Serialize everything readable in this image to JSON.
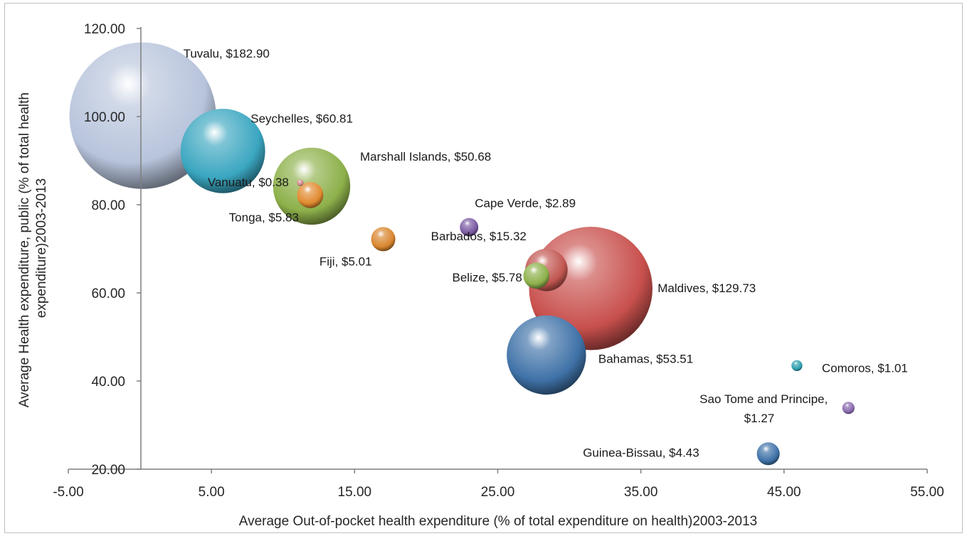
{
  "chart_data": {
    "type": "scatter",
    "variant": "bubble",
    "title": "",
    "xlabel": "Average Out-of-pocket health expenditure (% of total expenditure on health)2003-2013",
    "ylabel": "Average Health expenditure, public (% of total health expenditure)2003-2013",
    "xlim": [
      -5,
      55
    ],
    "ylim": [
      20,
      120
    ],
    "x_ticks": [
      "-5.00",
      "5.00",
      "15.00",
      "25.00",
      "35.00",
      "45.00",
      "55.00"
    ],
    "y_ticks": [
      "20.00",
      "40.00",
      "60.00",
      "80.00",
      "100.00",
      "120.00"
    ],
    "grid": false,
    "legend": "none",
    "size_note": "bubble size corresponds to the $ value in each label",
    "points": [
      {
        "label": "Tuvalu, $182.90",
        "x": 0.2,
        "y": 100.2,
        "size": 182.9,
        "color": "#b8c4dc"
      },
      {
        "label": "Seychelles, $60.81",
        "x": 5.8,
        "y": 92.2,
        "size": 60.81,
        "color": "#3aa6c0"
      },
      {
        "label": "Marshall Islands, $50.68",
        "x": 12.0,
        "y": 84.2,
        "size": 50.68,
        "color": "#8db04a"
      },
      {
        "label": "Vanuatu, $0.38",
        "x": 11.2,
        "y": 85.0,
        "size": 0.38,
        "color": "#d08a8a"
      },
      {
        "label": "Tonga, $5.83",
        "x": 11.9,
        "y": 82.2,
        "size": 5.83,
        "color": "#e08a2e"
      },
      {
        "label": "Fiji, $5.01",
        "x": 17.0,
        "y": 72.2,
        "size": 5.01,
        "color": "#d9862e"
      },
      {
        "label": "Cape Verde, $2.89",
        "x": 23.0,
        "y": 74.9,
        "size": 2.89,
        "color": "#7a5aa3"
      },
      {
        "label": "Barbados, $15.32",
        "x": 28.4,
        "y": 65.2,
        "size": 15.32,
        "color": "#c25650"
      },
      {
        "label": "Belize, $5.78",
        "x": 27.7,
        "y": 63.9,
        "size": 5.78,
        "color": "#8db04a"
      },
      {
        "label": "Maldives, $129.73",
        "x": 31.5,
        "y": 61.0,
        "size": 129.73,
        "color": "#c8504d"
      },
      {
        "label": "Bahamas, $53.51",
        "x": 28.4,
        "y": 45.9,
        "size": 53.51,
        "color": "#3f72a8"
      },
      {
        "label": "Comoros,  $1.01",
        "x": 45.9,
        "y": 43.5,
        "size": 1.01,
        "color": "#2f9fb0"
      },
      {
        "label": "Sao Tome and Principe,",
        "label2": "$1.27",
        "x": 49.5,
        "y": 33.9,
        "size": 1.27,
        "color": "#8a6ab0"
      },
      {
        "label": "Guinea-Bissau, $4.43",
        "x": 43.9,
        "y": 23.5,
        "size": 4.43,
        "color": "#3f72a8"
      }
    ]
  }
}
